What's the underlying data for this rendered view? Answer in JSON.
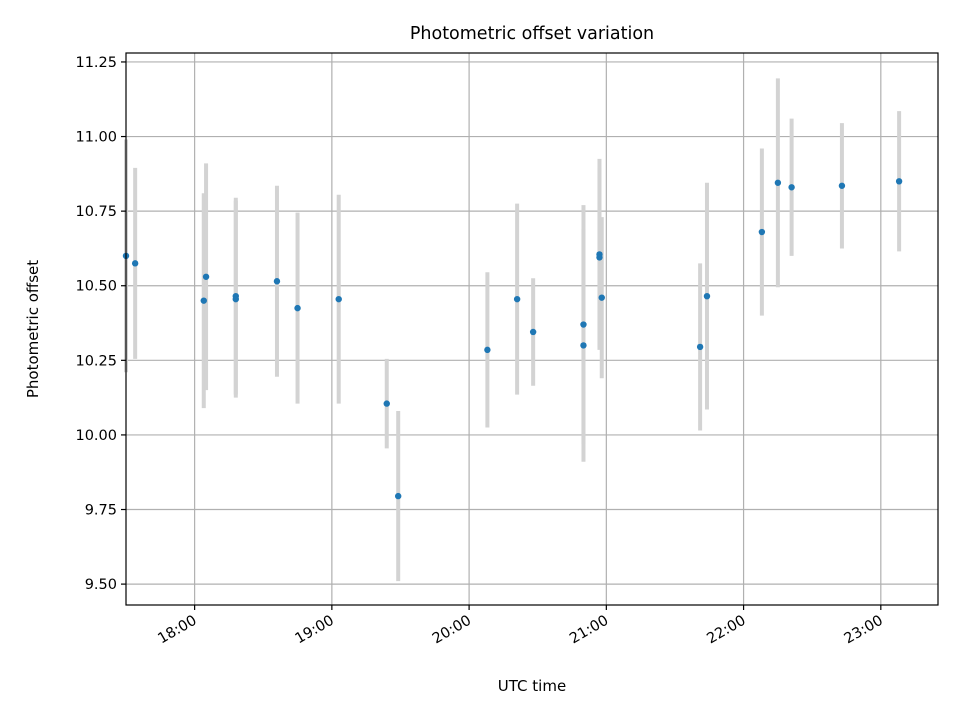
{
  "chart_data": {
    "type": "scatter",
    "title": "Photometric offset variation",
    "xlabel": "UTC time",
    "ylabel": "Photometric offset",
    "x_ticks": [
      "18:00",
      "19:00",
      "20:00",
      "21:00",
      "22:00",
      "23:00"
    ],
    "y_ticks": [
      "9.50",
      "9.75",
      "10.00",
      "10.25",
      "10.50",
      "10.75",
      "11.00",
      "11.25"
    ],
    "xlim": [
      "17:30",
      "23:25"
    ],
    "ylim": [
      9.43,
      11.28
    ],
    "grid": true,
    "x_tick_rotation": "slanted",
    "colors": {
      "point": "#1f77b4",
      "errorbar": "#d3d3d3",
      "grid": "#b0b0b0"
    },
    "series": [
      {
        "marker": "dot",
        "points": [
          {
            "x": "17:30",
            "y": 10.6,
            "err": 0.39
          },
          {
            "x": "17:34",
            "y": 10.575,
            "err": 0.32
          },
          {
            "x": "18:04",
            "y": 10.45,
            "err": 0.36
          },
          {
            "x": "18:05",
            "y": 10.53,
            "err": 0.38
          },
          {
            "x": "18:18",
            "y": 10.465,
            "err": 0.33
          },
          {
            "x": "18:18",
            "y": 10.455,
            "err": 0.33
          },
          {
            "x": "18:36",
            "y": 10.515,
            "err": 0.32
          },
          {
            "x": "18:45",
            "y": 10.425,
            "err": 0.32
          },
          {
            "x": "19:03",
            "y": 10.455,
            "err": 0.35
          },
          {
            "x": "19:24",
            "y": 10.105,
            "err": 0.15
          },
          {
            "x": "19:29",
            "y": 9.795,
            "err": 0.285
          },
          {
            "x": "20:08",
            "y": 10.285,
            "err": 0.26
          },
          {
            "x": "20:21",
            "y": 10.455,
            "err": 0.32
          },
          {
            "x": "20:28",
            "y": 10.345,
            "err": 0.18
          },
          {
            "x": "20:50",
            "y": 10.37,
            "err": 0.4
          },
          {
            "x": "20:50",
            "y": 10.3,
            "err": 0.39
          },
          {
            "x": "20:57",
            "y": 10.605,
            "err": 0.32
          },
          {
            "x": "20:57",
            "y": 10.595,
            "err": 0.3
          },
          {
            "x": "20:58",
            "y": 10.46,
            "err": 0.27
          },
          {
            "x": "21:41",
            "y": 10.295,
            "err": 0.28
          },
          {
            "x": "21:44",
            "y": 10.465,
            "err": 0.38
          },
          {
            "x": "22:08",
            "y": 10.68,
            "err": 0.28
          },
          {
            "x": "22:15",
            "y": 10.845,
            "err": 0.35
          },
          {
            "x": "22:21",
            "y": 10.83,
            "err": 0.23
          },
          {
            "x": "22:43",
            "y": 10.835,
            "err": 0.21
          },
          {
            "x": "23:08",
            "y": 10.85,
            "err": 0.235
          }
        ]
      }
    ]
  }
}
